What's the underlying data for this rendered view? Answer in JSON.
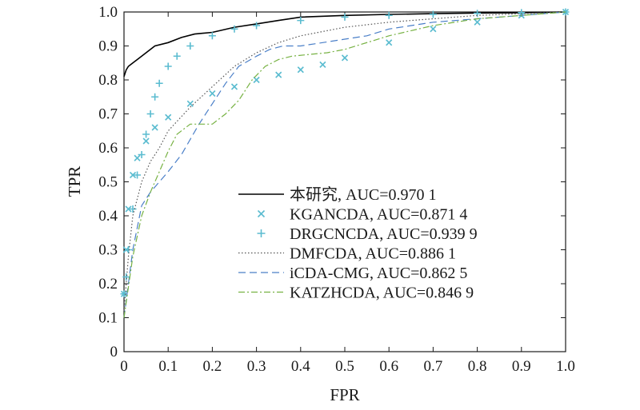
{
  "chart_data": {
    "type": "line",
    "xlabel": "FPR",
    "ylabel": "TPR",
    "xlim": [
      0,
      1.0
    ],
    "ylim": [
      0,
      1.0
    ],
    "xticks": [
      "0",
      "0.1",
      "0.2",
      "0.3",
      "0.4",
      "0.5",
      "0.6",
      "0.7",
      "0.8",
      "0.9",
      "1.0"
    ],
    "yticks": [
      "0",
      "0.1",
      "0.2",
      "0.3",
      "0.4",
      "0.5",
      "0.6",
      "0.7",
      "0.8",
      "0.9",
      "1.0"
    ],
    "grid": false,
    "legend_position": "center-right",
    "series": [
      {
        "name": "本研究, AUC=0.970 1",
        "style": "solid",
        "marker": "none",
        "color": "#000000",
        "x": [
          0,
          0.005,
          0.01,
          0.02,
          0.03,
          0.05,
          0.07,
          0.1,
          0.13,
          0.16,
          0.2,
          0.25,
          0.3,
          0.35,
          0.4,
          0.5,
          0.6,
          0.7,
          0.8,
          0.9,
          1.0
        ],
        "y": [
          0.81,
          0.83,
          0.84,
          0.85,
          0.86,
          0.88,
          0.9,
          0.91,
          0.925,
          0.935,
          0.94,
          0.955,
          0.965,
          0.975,
          0.985,
          0.99,
          0.993,
          0.995,
          0.997,
          0.998,
          1.0
        ]
      },
      {
        "name": "KGANCDA, AUC=0.871 4",
        "style": "markers",
        "marker": "x",
        "color": "#5bbcd0",
        "x": [
          0,
          0.005,
          0.01,
          0.02,
          0.03,
          0.05,
          0.07,
          0.1,
          0.15,
          0.2,
          0.25,
          0.3,
          0.35,
          0.4,
          0.45,
          0.5,
          0.6,
          0.7,
          0.8,
          0.9,
          1.0
        ],
        "y": [
          0.17,
          0.3,
          0.42,
          0.52,
          0.57,
          0.62,
          0.66,
          0.69,
          0.73,
          0.76,
          0.78,
          0.8,
          0.815,
          0.83,
          0.845,
          0.865,
          0.91,
          0.95,
          0.97,
          0.99,
          1.0
        ]
      },
      {
        "name": "DRGCNCDA, AUC=0.939 9",
        "style": "markers",
        "marker": "+",
        "color": "#5bbcd0",
        "x": [
          0,
          0.005,
          0.01,
          0.02,
          0.03,
          0.04,
          0.05,
          0.06,
          0.07,
          0.08,
          0.1,
          0.12,
          0.15,
          0.2,
          0.25,
          0.3,
          0.4,
          0.5,
          0.6,
          0.7,
          0.8,
          0.9,
          1.0
        ],
        "y": [
          0.17,
          0.22,
          0.3,
          0.42,
          0.52,
          0.58,
          0.64,
          0.7,
          0.75,
          0.79,
          0.84,
          0.87,
          0.9,
          0.93,
          0.95,
          0.96,
          0.975,
          0.985,
          0.99,
          0.993,
          0.996,
          0.998,
          1.0
        ]
      },
      {
        "name": "DMFCDA, AUC=0.886 1",
        "style": "dotted",
        "marker": "none",
        "color": "#555555",
        "x": [
          0,
          0.01,
          0.02,
          0.04,
          0.06,
          0.08,
          0.1,
          0.15,
          0.2,
          0.25,
          0.3,
          0.35,
          0.4,
          0.5,
          0.6,
          0.7,
          0.8,
          0.9,
          1.0
        ],
        "y": [
          0.12,
          0.28,
          0.4,
          0.5,
          0.56,
          0.6,
          0.65,
          0.72,
          0.78,
          0.84,
          0.88,
          0.91,
          0.93,
          0.955,
          0.97,
          0.98,
          0.99,
          0.995,
          1.0
        ]
      },
      {
        "name": "iCDA-CMG, AUC=0.862 5",
        "style": "dashed",
        "marker": "none",
        "color": "#4a7fc8",
        "x": [
          0,
          0.02,
          0.04,
          0.06,
          0.08,
          0.1,
          0.13,
          0.17,
          0.2,
          0.23,
          0.26,
          0.3,
          0.33,
          0.36,
          0.4,
          0.45,
          0.5,
          0.55,
          0.6,
          0.7,
          0.8,
          0.9,
          1.0
        ],
        "y": [
          0.1,
          0.3,
          0.43,
          0.47,
          0.5,
          0.53,
          0.58,
          0.67,
          0.73,
          0.79,
          0.84,
          0.87,
          0.89,
          0.9,
          0.9,
          0.91,
          0.92,
          0.93,
          0.95,
          0.97,
          0.98,
          0.99,
          1.0
        ]
      },
      {
        "name": "KATZHCDA, AUC=0.846 9",
        "style": "dashdot",
        "marker": "none",
        "color": "#77b243",
        "x": [
          0,
          0.02,
          0.04,
          0.06,
          0.08,
          0.1,
          0.12,
          0.15,
          0.2,
          0.23,
          0.26,
          0.29,
          0.32,
          0.35,
          0.38,
          0.42,
          0.46,
          0.5,
          0.6,
          0.7,
          0.8,
          0.9,
          1.0
        ],
        "y": [
          0.1,
          0.28,
          0.4,
          0.47,
          0.53,
          0.59,
          0.64,
          0.67,
          0.67,
          0.7,
          0.74,
          0.8,
          0.84,
          0.86,
          0.87,
          0.875,
          0.88,
          0.89,
          0.93,
          0.96,
          0.98,
          0.99,
          1.0
        ]
      }
    ]
  }
}
